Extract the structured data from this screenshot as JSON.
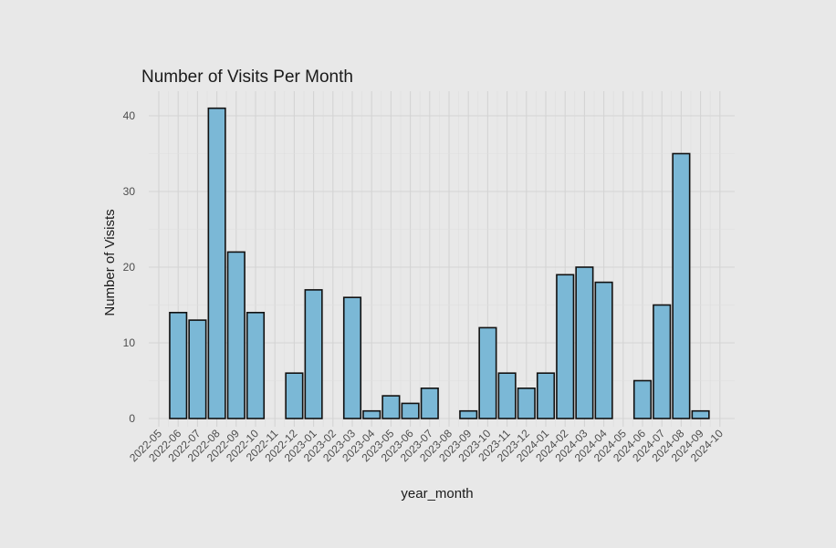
{
  "chart_data": {
    "type": "bar",
    "title": "Number of Visits Per Month",
    "xlabel": "year_month",
    "ylabel": "Number of Visists",
    "ylim": [
      0,
      42
    ],
    "yticks": [
      0,
      10,
      20,
      30,
      40
    ],
    "grid": true,
    "legend": "none",
    "colors": {
      "bar_fill": "#7bb8d6",
      "bar_stroke": "#111111",
      "background": "#e8e8e8"
    },
    "tick_labels": [
      "2022-05",
      "2022-06",
      "2022-07",
      "2022-08",
      "2022-09",
      "2022-10",
      "2022-11",
      "2022-12",
      "2023-01",
      "2023-02",
      "2023-03",
      "2023-04",
      "2023-05",
      "2023-06",
      "2023-07",
      "2023-08",
      "2023-09",
      "2023-10",
      "2023-11",
      "2023-12",
      "2024-01",
      "2024-02",
      "2024-03",
      "2024-04",
      "2024-05",
      "2024-06",
      "2024-07",
      "2024-08",
      "2024-09",
      "2024-10"
    ],
    "bars": [
      {
        "x": "2022-06",
        "y": 14
      },
      {
        "x": "2022-07",
        "y": 13
      },
      {
        "x": "2022-08",
        "y": 41
      },
      {
        "x": "2022-09",
        "y": 22
      },
      {
        "x": "2022-10",
        "y": 14
      },
      {
        "x": "2022-12",
        "y": 6
      },
      {
        "x": "2023-01",
        "y": 17
      },
      {
        "x": "2023-03",
        "y": 16
      },
      {
        "x": "2023-04",
        "y": 1
      },
      {
        "x": "2023-05",
        "y": 3
      },
      {
        "x": "2023-06",
        "y": 2
      },
      {
        "x": "2023-07",
        "y": 4
      },
      {
        "x": "2023-09",
        "y": 1
      },
      {
        "x": "2023-10",
        "y": 12
      },
      {
        "x": "2023-11",
        "y": 6
      },
      {
        "x": "2023-12",
        "y": 4
      },
      {
        "x": "2024-01",
        "y": 6
      },
      {
        "x": "2024-02",
        "y": 19
      },
      {
        "x": "2024-03",
        "y": 20
      },
      {
        "x": "2024-04",
        "y": 18
      },
      {
        "x": "2024-06",
        "y": 5
      },
      {
        "x": "2024-07",
        "y": 15
      },
      {
        "x": "2024-08",
        "y": 35
      },
      {
        "x": "2024-09",
        "y": 1
      }
    ]
  }
}
